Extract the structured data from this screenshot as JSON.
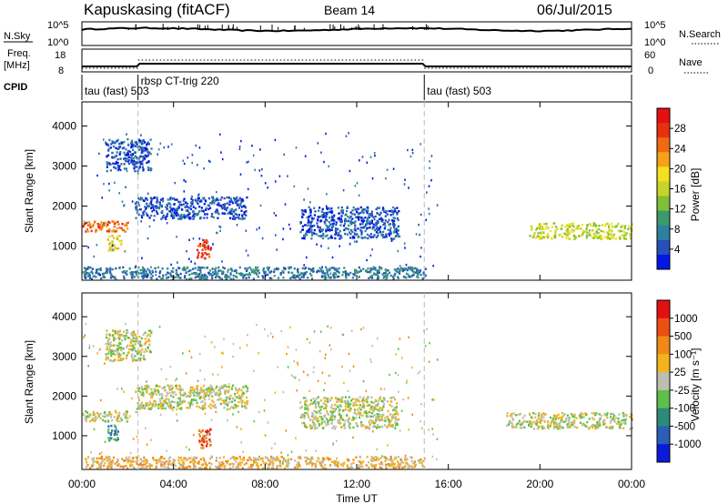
{
  "header": {
    "station": "Kapuskasing (fitACF)",
    "beam": "Beam 14",
    "date": "06/Jul/2015"
  },
  "top_panels": {
    "nsky_label": "N.Sky",
    "nsky_ticks": [
      "10^5",
      "10^0"
    ],
    "nsearch_ticks": [
      "10^5",
      "10^0"
    ],
    "nsearch_label": "N.Search",
    "freq_label": "Freq.",
    "freq_unit": "[MHz]",
    "freq_ticks": [
      "18",
      "8"
    ],
    "nave_ticks": [
      "60",
      "0"
    ],
    "nave_label": "Nave",
    "cpid_label": "CPID",
    "cpid_segments": [
      {
        "start": 0.0,
        "end": 2.45,
        "label": "tau (fast) 503"
      },
      {
        "start": 2.45,
        "end": 14.95,
        "label": "rbsp CT-trig 220"
      },
      {
        "start": 14.95,
        "end": 24.0,
        "label": "tau (fast) 503"
      }
    ]
  },
  "power_colorbar": {
    "label": "Power [dB]",
    "ticks": [
      "28",
      "24",
      "20",
      "16",
      "12",
      "8",
      "4"
    ],
    "colors": [
      "#0018e6",
      "#2850b8",
      "#2e7fa0",
      "#3a9a6a",
      "#7fbf3a",
      "#c9d22a",
      "#f2e21e",
      "#f5a21a",
      "#f06a14",
      "#e83010",
      "#e41010"
    ]
  },
  "velocity_colorbar": {
    "label": "Velocity [m s⁻¹]",
    "ticks": [
      "1000",
      "500",
      "100",
      "25",
      "-25",
      "-100",
      "-500",
      "-1000"
    ],
    "colors": [
      "#0a1ad8",
      "#2a5fb8",
      "#2e8a78",
      "#5cc04a",
      "#bdbdb0",
      "#f2b41e",
      "#f08a14",
      "#ec5010",
      "#e41010"
    ]
  },
  "chart_data": [
    {
      "type": "heatmap",
      "title": "Power",
      "ylabel": "Slant Range [km]",
      "ylim": [
        150,
        4600
      ],
      "yticks": [
        "1000",
        "2000",
        "3000",
        "4000"
      ],
      "xlim": [
        0,
        24
      ],
      "features": [
        {
          "t0": 0.0,
          "t1": 2.0,
          "r0": 1380,
          "r1": 1650,
          "level": 8
        },
        {
          "t0": 1.1,
          "t1": 1.7,
          "r0": 900,
          "r1": 1300,
          "level": 6
        },
        {
          "t0": 2.3,
          "t1": 7.2,
          "r0": 1700,
          "r1": 2250,
          "level": 1
        },
        {
          "t0": 5.0,
          "t1": 5.6,
          "r0": 700,
          "r1": 1200,
          "level": 9
        },
        {
          "t0": 9.5,
          "t1": 13.8,
          "r0": 1200,
          "r1": 2000,
          "level": 1
        },
        {
          "t0": 1.0,
          "t1": 3.0,
          "r0": 2900,
          "r1": 3700,
          "level": 1
        },
        {
          "t0": 19.5,
          "t1": 24.0,
          "r0": 1200,
          "r1": 1600,
          "level": 5
        },
        {
          "t0": 0.0,
          "t1": 15.0,
          "r0": 200,
          "r1": 500,
          "level": 2
        }
      ]
    },
    {
      "type": "heatmap",
      "title": "Velocity",
      "ylabel": "Slant Range [km]",
      "xlabel": "Time UT",
      "ylim": [
        150,
        4600
      ],
      "yticks": [
        "1000",
        "2000",
        "3000",
        "4000"
      ],
      "xlim": [
        0,
        24
      ],
      "xticks": [
        "00:00",
        "04:00",
        "08:00",
        "12:00",
        "16:00",
        "20:00",
        "00:00"
      ],
      "features": [
        {
          "t0": 0.0,
          "t1": 2.0,
          "r0": 1380,
          "r1": 1650,
          "level": 4
        },
        {
          "t0": 1.1,
          "t1": 1.6,
          "r0": 900,
          "r1": 1300,
          "level": 2
        },
        {
          "t0": 2.3,
          "t1": 7.2,
          "r0": 1700,
          "r1": 2300,
          "level": 4
        },
        {
          "t0": 5.0,
          "t1": 5.6,
          "r0": 700,
          "r1": 1200,
          "level": 7
        },
        {
          "t0": 9.5,
          "t1": 13.8,
          "r0": 1200,
          "r1": 2000,
          "level": 4
        },
        {
          "t0": 1.0,
          "t1": 3.0,
          "r0": 2900,
          "r1": 3700,
          "level": 4
        },
        {
          "t0": 18.5,
          "t1": 24.0,
          "r0": 1200,
          "r1": 1600,
          "level": 4
        },
        {
          "t0": 0.0,
          "t1": 15.0,
          "r0": 200,
          "r1": 500,
          "level": 5
        }
      ]
    }
  ]
}
